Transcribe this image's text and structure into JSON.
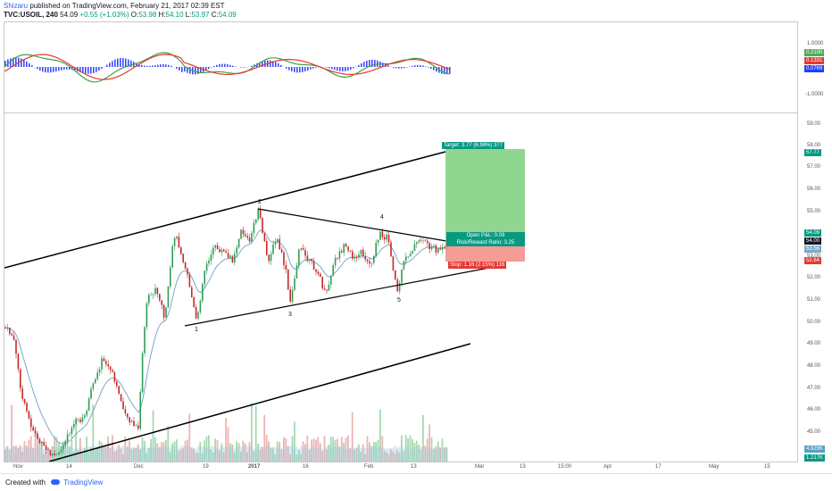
{
  "header": {
    "author": "Shizaru",
    "published_text": "published on TradingView.com, February 21, 2017 02:39 EST",
    "symbol": "TVC:USOIL, 240",
    "price": "54.09",
    "change": "+0.55 (+1.03%)",
    "o_label": "O:",
    "o_value": "53.98",
    "h_label": "H:",
    "h_value": "54.10",
    "l_label": "L:",
    "l_value": "53.97",
    "c_label": "C:",
    "c_value": "54.09"
  },
  "oscillator": {
    "axis_labels": [
      "1.0000",
      "-1.0000"
    ],
    "tags": [
      {
        "text": "0.2100",
        "color": "#4caf50"
      },
      {
        "text": "0.1331",
        "color": "#e53935"
      },
      {
        "text": "0.0769",
        "color": "#1e40ff"
      }
    ]
  },
  "price_axis": {
    "labels": [
      "59.00",
      "58.00",
      "57.00",
      "56.00",
      "55.00",
      "54.00",
      "53.00",
      "52.00",
      "51.00",
      "50.00",
      "49.00",
      "48.00",
      "47.00",
      "46.00",
      "45.00"
    ],
    "tags": [
      {
        "text": "57.77",
        "color": "#089981"
      },
      {
        "text": "54.09",
        "color": "#089981"
      },
      {
        "text": "54.00",
        "color": "#131722"
      },
      {
        "text": "53.56",
        "color": "#7fa7c9"
      },
      {
        "text": "52.84",
        "color": "#e53935"
      },
      {
        "text": "4.929K",
        "color": "#5aa0c8"
      },
      {
        "text": "1.217K",
        "color": "#089981"
      }
    ]
  },
  "time_axis": {
    "labels": [
      "Nov",
      "14",
      "Dec",
      "19",
      "2017",
      "16",
      "Feb",
      "13",
      "Mar",
      "13",
      "15:00",
      "Apr",
      "17",
      "May",
      "15"
    ]
  },
  "trade": {
    "target_text": "Target: 3.77 (6.98%) 377",
    "open_pl_text": "Open P&L: 0.09",
    "rr_text": "Risk/Reward Ratio: 3.25",
    "stop_text": "Stop: 1.16 (2.15%) 116"
  },
  "wave_labels": [
    "1",
    "2",
    "3",
    "4",
    "5"
  ],
  "footer": {
    "created_with": "Created with",
    "brand": "TradingView"
  }
}
